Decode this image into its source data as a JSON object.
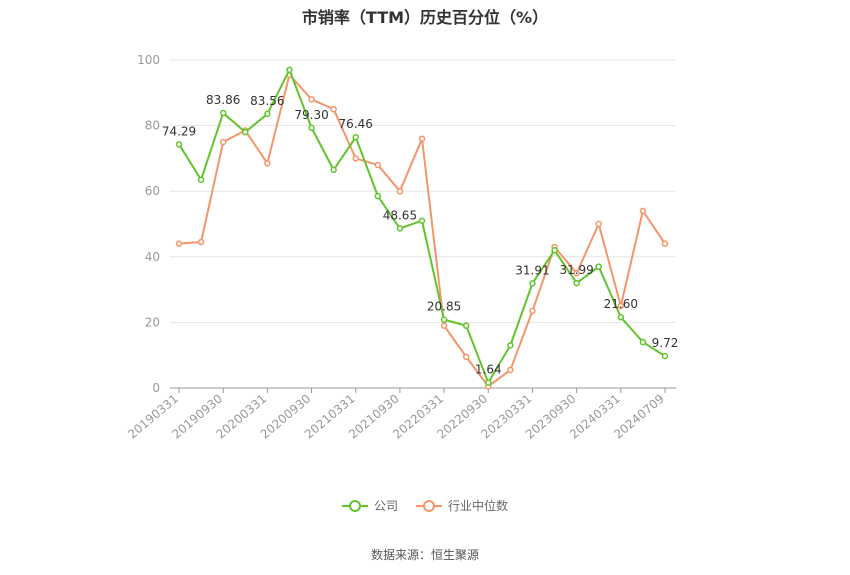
{
  "title": "市销率（TTM）历史百分位（%）",
  "source": "数据来源：恒生聚源",
  "colors": {
    "company": "#62c42c",
    "industry": "#f4956a",
    "grid": "#e6e6e6",
    "axis": "#999999"
  },
  "chart_data": {
    "type": "line",
    "title": "市销率（TTM）历史百分位（%）",
    "xlabel": "",
    "ylabel": "",
    "ylim": [
      0,
      100
    ],
    "yticks": [
      0,
      20,
      40,
      60,
      80,
      100
    ],
    "grid": true,
    "legend_position": "bottom",
    "x": [
      "20190331",
      "20190630",
      "20190930",
      "20191231",
      "20200331",
      "20200630",
      "20200930",
      "20201231",
      "20210331",
      "20210630",
      "20210930",
      "20211231",
      "20220331",
      "20220630",
      "20220930",
      "20221231",
      "20230331",
      "20230630",
      "20230930",
      "20231231",
      "20240331",
      "20240630",
      "20240709"
    ],
    "xtick_labels": [
      "20190331",
      "20190930",
      "20200331",
      "20200930",
      "20210331",
      "20210930",
      "20220331",
      "20220930",
      "20230331",
      "20230930",
      "20240331",
      "20240709"
    ],
    "series": [
      {
        "name": "公司",
        "values": [
          74.29,
          63.5,
          83.86,
          78.0,
          83.56,
          97.0,
          79.3,
          66.5,
          76.46,
          58.5,
          48.65,
          51.0,
          20.85,
          19.0,
          1.64,
          13.0,
          31.91,
          42.0,
          31.99,
          37.0,
          21.6,
          14.0,
          9.72
        ],
        "data_labels": {
          "0": "74.29",
          "2": "83.86",
          "4": "83.56",
          "6": "79.30",
          "8": "76.46",
          "10": "48.65",
          "12": "20.85",
          "14": "1.64",
          "16": "31.91",
          "18": "31.99",
          "20": "21.60",
          "22": "9.72"
        }
      },
      {
        "name": "行业中位数",
        "values": [
          44.0,
          44.5,
          75.0,
          78.5,
          68.5,
          95.5,
          88.0,
          85.0,
          70.0,
          68.0,
          60.0,
          76.0,
          19.0,
          9.5,
          0.5,
          5.5,
          23.5,
          43.0,
          35.0,
          50.0,
          25.0,
          54.0,
          44.0
        ]
      }
    ]
  }
}
